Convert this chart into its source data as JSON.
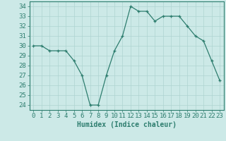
{
  "x": [
    0,
    1,
    2,
    3,
    4,
    5,
    6,
    7,
    8,
    9,
    10,
    11,
    12,
    13,
    14,
    15,
    16,
    17,
    18,
    19,
    20,
    21,
    22,
    23
  ],
  "y": [
    30,
    30.0,
    29.5,
    29.5,
    29.5,
    28.5,
    27.0,
    24.0,
    24.0,
    27.0,
    29.5,
    31.0,
    34.0,
    33.5,
    33.5,
    32.5,
    33.0,
    33.0,
    33.0,
    32.0,
    31.0,
    30.5,
    28.5,
    26.5
  ],
  "line_color": "#2d7d6e",
  "marker": "+",
  "marker_color": "#2d7d6e",
  "bg_color": "#cce9e7",
  "grid_color": "#aed4d1",
  "xlabel": "Humidex (Indice chaleur)",
  "xlabel_fontsize": 7,
  "ylabel_ticks": [
    24,
    25,
    26,
    27,
    28,
    29,
    30,
    31,
    32,
    33,
    34
  ],
  "xlim": [
    -0.5,
    23.5
  ],
  "ylim": [
    23.5,
    34.5
  ],
  "tick_fontsize": 6.5,
  "spine_color": "#2d7d6e"
}
